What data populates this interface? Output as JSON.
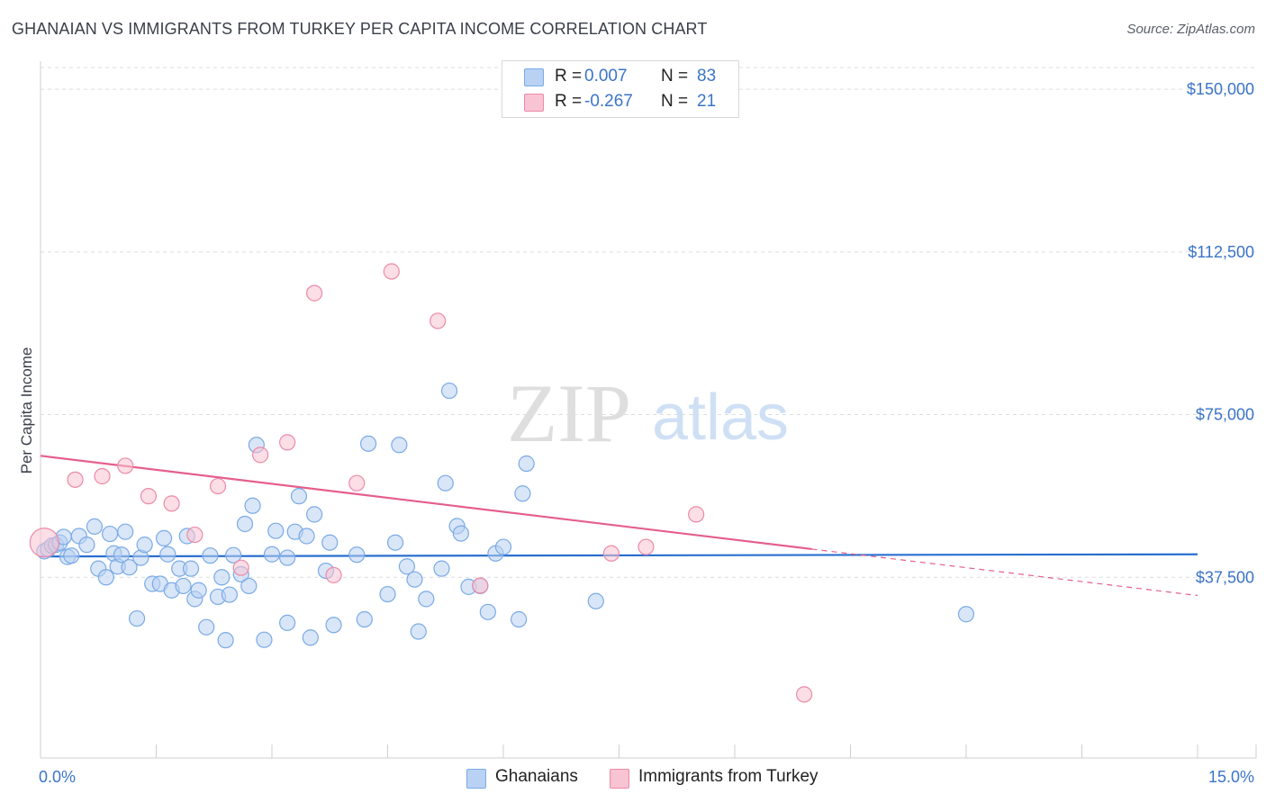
{
  "header": {
    "title": "GHANAIAN VS IMMIGRANTS FROM TURKEY PER CAPITA INCOME CORRELATION CHART",
    "source": "Source: ZipAtlas.com"
  },
  "watermark": {
    "zip": "ZIP",
    "atlas": "atlas"
  },
  "legend": {
    "rows": [
      {
        "r_label": "R =",
        "r_value": "0.007",
        "n_label": "N =",
        "n_value": "83",
        "color": "#a9c8f2"
      },
      {
        "r_label": "R =",
        "r_value": "-0.267",
        "n_label": "N =",
        "n_value": "21",
        "color": "#f7b8cb"
      }
    ]
  },
  "bottom_legend": [
    {
      "label": "Ghanaians",
      "color": "#a9c8f2"
    },
    {
      "label": "Immigrants from Turkey",
      "color": "#f7b8cb"
    }
  ],
  "chart_data": {
    "type": "scatter",
    "ylabel": "Per Capita Income",
    "xlim": [
      0,
      15
    ],
    "ylim": [
      0,
      155000
    ],
    "x_tick_labels": [
      "0.0%",
      "15.0%"
    ],
    "y_ticks": [
      {
        "value": 37500,
        "label": "$37,500"
      },
      {
        "value": 75000,
        "label": "$75,000"
      },
      {
        "value": 112500,
        "label": "$112,500"
      },
      {
        "value": 150000,
        "label": "$150,000"
      }
    ],
    "grid": true,
    "series": [
      {
        "name": "Ghanaians",
        "color": "#7aaae6",
        "fill": "#b9d2f3",
        "trend": {
          "x": [
            0,
            15
          ],
          "y": [
            42300,
            42800
          ],
          "color": "#2a6fcf"
        },
        "points": [
          [
            0.05,
            43500
          ],
          [
            0.1,
            44000
          ],
          [
            0.15,
            44800
          ],
          [
            0.2,
            45000
          ],
          [
            0.25,
            45500
          ],
          [
            0.3,
            46800
          ],
          [
            0.35,
            42200
          ],
          [
            0.4,
            42500
          ],
          [
            0.5,
            47000
          ],
          [
            0.6,
            45000
          ],
          [
            0.7,
            49200
          ],
          [
            0.75,
            39500
          ],
          [
            0.85,
            37500
          ],
          [
            0.9,
            47500
          ],
          [
            0.95,
            43000
          ],
          [
            1.0,
            40000
          ],
          [
            1.05,
            42700
          ],
          [
            1.1,
            48000
          ],
          [
            1.15,
            39800
          ],
          [
            1.25,
            28000
          ],
          [
            1.3,
            42000
          ],
          [
            1.35,
            45000
          ],
          [
            1.45,
            36000
          ],
          [
            1.55,
            36000
          ],
          [
            1.6,
            46500
          ],
          [
            1.65,
            42800
          ],
          [
            1.7,
            34500
          ],
          [
            1.8,
            39500
          ],
          [
            1.85,
            35500
          ],
          [
            1.9,
            47000
          ],
          [
            1.95,
            39500
          ],
          [
            2.0,
            32500
          ],
          [
            2.05,
            34500
          ],
          [
            2.15,
            26000
          ],
          [
            2.2,
            42500
          ],
          [
            2.3,
            33000
          ],
          [
            2.35,
            37500
          ],
          [
            2.4,
            23000
          ],
          [
            2.45,
            33500
          ],
          [
            2.5,
            42600
          ],
          [
            2.6,
            38200
          ],
          [
            2.65,
            49800
          ],
          [
            2.7,
            35500
          ],
          [
            2.75,
            54000
          ],
          [
            2.8,
            68000
          ],
          [
            2.9,
            23100
          ],
          [
            3.0,
            42800
          ],
          [
            3.05,
            48200
          ],
          [
            3.2,
            42000
          ],
          [
            3.2,
            27000
          ],
          [
            3.3,
            48000
          ],
          [
            3.35,
            56200
          ],
          [
            3.45,
            47000
          ],
          [
            3.5,
            23600
          ],
          [
            3.55,
            52000
          ],
          [
            3.7,
            39000
          ],
          [
            3.75,
            45500
          ],
          [
            3.8,
            26500
          ],
          [
            4.1,
            42700
          ],
          [
            4.2,
            27800
          ],
          [
            4.25,
            68300
          ],
          [
            4.5,
            33600
          ],
          [
            4.6,
            45500
          ],
          [
            4.65,
            68000
          ],
          [
            4.75,
            40000
          ],
          [
            4.85,
            37000
          ],
          [
            4.9,
            25000
          ],
          [
            5.0,
            32500
          ],
          [
            5.2,
            39500
          ],
          [
            5.25,
            59200
          ],
          [
            5.3,
            80500
          ],
          [
            5.4,
            49300
          ],
          [
            5.45,
            47600
          ],
          [
            5.55,
            35300
          ],
          [
            5.7,
            35500
          ],
          [
            5.8,
            29500
          ],
          [
            5.9,
            43000
          ],
          [
            6.0,
            44500
          ],
          [
            6.2,
            27800
          ],
          [
            6.25,
            56800
          ],
          [
            6.3,
            63700
          ],
          [
            7.2,
            32000
          ],
          [
            12.0,
            29000
          ]
        ]
      },
      {
        "name": "Immigrants from Turkey",
        "color": "#ec8aa8",
        "fill": "#f8c3d2",
        "trend": {
          "x": [
            0,
            10
          ],
          "y": [
            65500,
            44000
          ],
          "x_dashed_end": 15,
          "y_dashed_end": 33300,
          "color": "#e45f8b"
        },
        "points": [
          [
            0.05,
            45500
          ],
          [
            0.45,
            60000
          ],
          [
            0.8,
            60800
          ],
          [
            1.1,
            63200
          ],
          [
            1.4,
            56200
          ],
          [
            1.7,
            54500
          ],
          [
            2.0,
            47300
          ],
          [
            2.3,
            58500
          ],
          [
            2.6,
            39700
          ],
          [
            2.85,
            65700
          ],
          [
            3.2,
            68600
          ],
          [
            3.55,
            103000
          ],
          [
            3.8,
            38000
          ],
          [
            4.1,
            59200
          ],
          [
            4.55,
            108000
          ],
          [
            5.15,
            96600
          ],
          [
            5.7,
            35600
          ],
          [
            7.4,
            43000
          ],
          [
            7.85,
            44500
          ],
          [
            8.5,
            52000
          ],
          [
            9.9,
            10500
          ]
        ]
      }
    ]
  }
}
